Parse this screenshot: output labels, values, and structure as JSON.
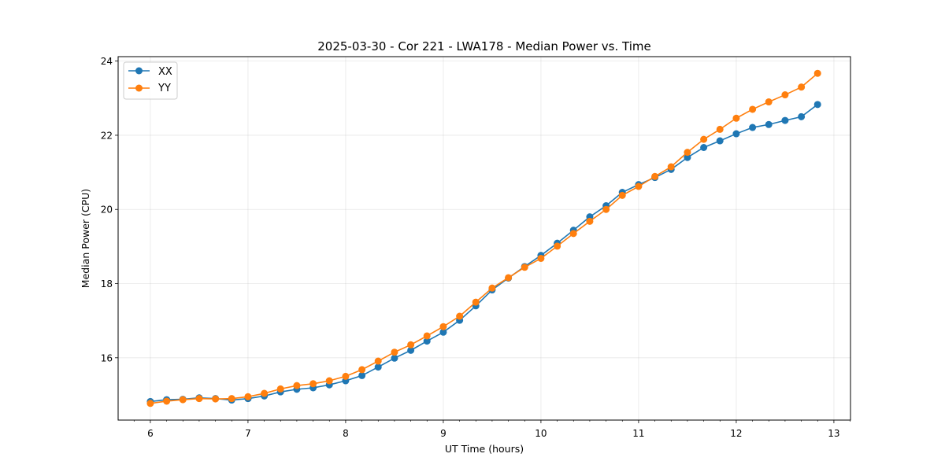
{
  "chart_data": {
    "type": "line",
    "title": "2025-03-30 - Cor 221 - LWA178 - Median Power vs. Time",
    "xlabel": "UT Time (hours)",
    "ylabel": "Median Power (CPU)",
    "xlim": [
      5.67,
      13.17
    ],
    "ylim": [
      14.32,
      24.12
    ],
    "xticks": [
      6,
      7,
      8,
      9,
      10,
      11,
      12,
      13
    ],
    "yticks": [
      16,
      18,
      20,
      22,
      24
    ],
    "grid": true,
    "legend_position": "top-left",
    "x": [
      6.0,
      6.167,
      6.333,
      6.5,
      6.667,
      6.833,
      7.0,
      7.167,
      7.333,
      7.5,
      7.667,
      7.833,
      8.0,
      8.167,
      8.333,
      8.5,
      8.667,
      8.833,
      9.0,
      9.167,
      9.333,
      9.5,
      9.667,
      9.833,
      10.0,
      10.167,
      10.333,
      10.5,
      10.667,
      10.833,
      11.0,
      11.167,
      11.333,
      11.5,
      11.667,
      11.833,
      12.0,
      12.167,
      12.333,
      12.5,
      12.667,
      12.833
    ],
    "series": [
      {
        "name": "XX",
        "color": "#1f77b4",
        "values": [
          14.82,
          14.87,
          14.88,
          14.92,
          14.9,
          14.86,
          14.9,
          14.97,
          15.08,
          15.15,
          15.19,
          15.27,
          15.38,
          15.52,
          15.75,
          15.99,
          16.2,
          16.45,
          16.69,
          17.01,
          17.4,
          17.83,
          18.15,
          18.46,
          18.76,
          19.09,
          19.44,
          19.8,
          20.1,
          20.46,
          20.67,
          20.86,
          21.08,
          21.4,
          21.67,
          21.85,
          22.04,
          22.21,
          22.29,
          22.4,
          22.5,
          22.83
        ]
      },
      {
        "name": "YY",
        "color": "#ff7f0e",
        "values": [
          14.77,
          14.83,
          14.87,
          14.9,
          14.89,
          14.9,
          14.95,
          15.04,
          15.16,
          15.25,
          15.3,
          15.38,
          15.5,
          15.68,
          15.91,
          16.15,
          16.35,
          16.59,
          16.84,
          17.12,
          17.5,
          17.88,
          18.16,
          18.44,
          18.68,
          19.01,
          19.35,
          19.68,
          20.0,
          20.38,
          20.62,
          20.89,
          21.15,
          21.54,
          21.89,
          22.16,
          22.46,
          22.7,
          22.9,
          23.09,
          23.3,
          23.67
        ]
      }
    ]
  }
}
